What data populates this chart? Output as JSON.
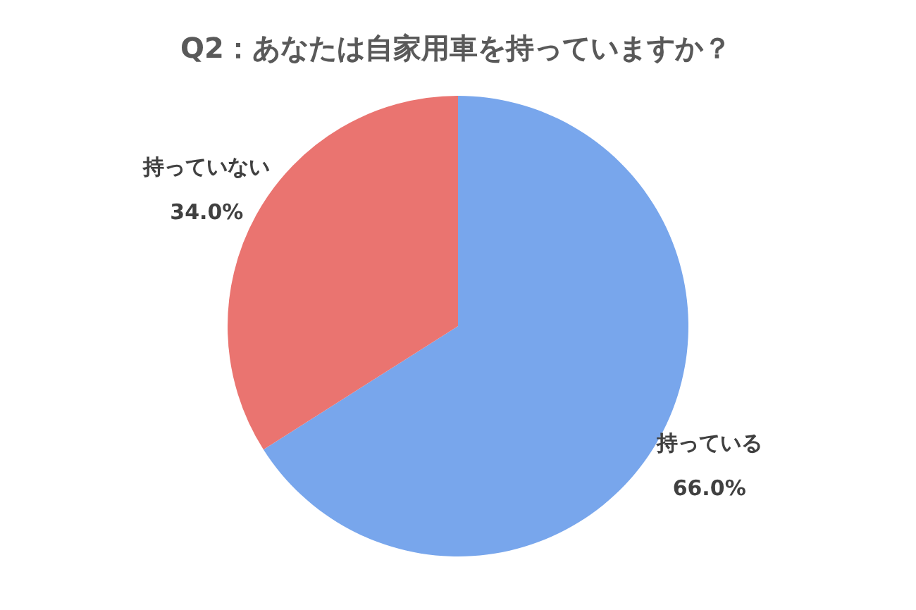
{
  "chart_data": {
    "type": "pie",
    "title": "Q2：あなたは自家用車を持っていますか？",
    "categories": [
      "持っている",
      "持っていない"
    ],
    "values": [
      66.0,
      34.0
    ],
    "colors": [
      "#78a6ec",
      "#ea7470"
    ],
    "value_labels": [
      "66.0%",
      "34.0%"
    ],
    "legend": false
  }
}
